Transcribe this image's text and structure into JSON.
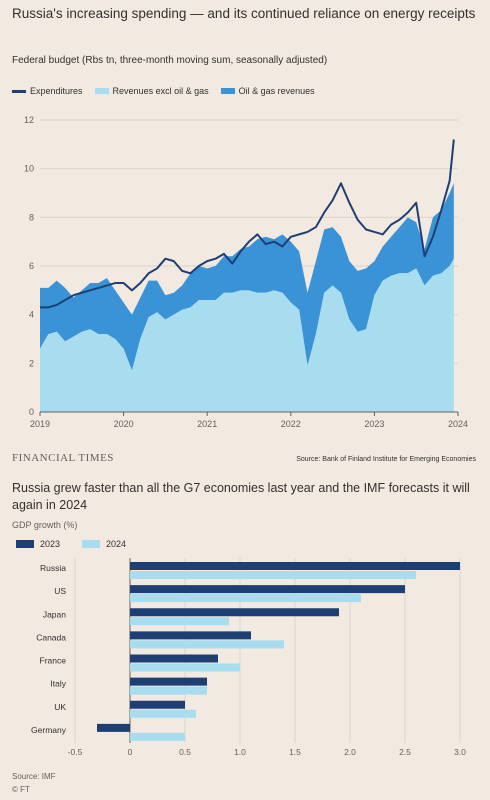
{
  "chart1": {
    "title": "Russia's increasing spending — and its continued reliance on energy receipts",
    "subtitle": "Federal budget (Rbs tn, three-month moving sum, seasonally adjusted)",
    "source": "Source: Bank of Finland Institute for Emerging Economies",
    "logo": "FINANCIAL TIMES"
  },
  "chart2": {
    "title": "Russia grew faster than all the G7 economies last year and the IMF forecasts it will again in 2024",
    "subtitle": "GDP growth (%)",
    "source": "Source: IMF",
    "copyright": "© FT"
  },
  "colors": {
    "background": "#f2e9e0",
    "expenditures": "#1e3f73",
    "revenues_excl": "#a8dcef",
    "oil_gas": "#3a93d6",
    "y2023": "#1e3f73",
    "y2024": "#a8dcef",
    "grid": "#dcd3cb",
    "axis_text": "#66605c"
  },
  "chart_data": [
    {
      "type": "area",
      "title": "Russia's increasing spending — and its continued reliance on energy receipts",
      "subtitle": "Federal budget (Rbs tn, three-month moving sum, seasonally adjusted)",
      "ylim": [
        0,
        12
      ],
      "yticks": [
        0,
        2,
        4,
        6,
        8,
        10,
        12
      ],
      "xlim": [
        2019,
        2024
      ],
      "xticks": [
        "2019",
        "2020",
        "2021",
        "2022",
        "2023",
        "2024"
      ],
      "grid": true,
      "legend_position": "top-left",
      "series": [
        {
          "name": "Expenditures",
          "style": "line",
          "x": [
            2019.0,
            2019.1,
            2019.2,
            2019.3,
            2019.4,
            2019.5,
            2019.6,
            2019.7,
            2019.8,
            2019.9,
            2020.0,
            2020.1,
            2020.2,
            2020.3,
            2020.4,
            2020.5,
            2020.6,
            2020.7,
            2020.8,
            2020.9,
            2021.0,
            2021.1,
            2021.2,
            2021.3,
            2021.4,
            2021.5,
            2021.6,
            2021.7,
            2021.8,
            2021.9,
            2022.0,
            2022.1,
            2022.2,
            2022.3,
            2022.4,
            2022.5,
            2022.6,
            2022.7,
            2022.8,
            2022.9,
            2023.0,
            2023.1,
            2023.2,
            2023.3,
            2023.4,
            2023.5,
            2023.6,
            2023.7,
            2023.8,
            2023.9,
            2023.95
          ],
          "values": [
            4.3,
            4.3,
            4.4,
            4.6,
            4.8,
            4.9,
            5.0,
            5.1,
            5.2,
            5.3,
            5.3,
            5.0,
            5.3,
            5.7,
            5.9,
            6.3,
            6.2,
            5.8,
            5.7,
            6.0,
            6.2,
            6.3,
            6.5,
            6.1,
            6.6,
            7.0,
            7.3,
            6.9,
            7.0,
            6.8,
            7.2,
            7.3,
            7.4,
            7.6,
            8.2,
            8.7,
            9.4,
            8.6,
            7.9,
            7.5,
            7.4,
            7.3,
            7.7,
            7.9,
            8.2,
            8.6,
            6.4,
            7.2,
            8.3,
            9.5,
            11.2
          ]
        },
        {
          "name": "Revenues excl oil & gas",
          "style": "area",
          "x": [
            2019.0,
            2019.1,
            2019.2,
            2019.3,
            2019.4,
            2019.5,
            2019.6,
            2019.7,
            2019.8,
            2019.9,
            2020.0,
            2020.1,
            2020.2,
            2020.3,
            2020.4,
            2020.5,
            2020.6,
            2020.7,
            2020.8,
            2020.9,
            2021.0,
            2021.1,
            2021.2,
            2021.3,
            2021.4,
            2021.5,
            2021.6,
            2021.7,
            2021.8,
            2021.9,
            2022.0,
            2022.1,
            2022.2,
            2022.3,
            2022.4,
            2022.5,
            2022.6,
            2022.7,
            2022.8,
            2022.9,
            2023.0,
            2023.1,
            2023.2,
            2023.3,
            2023.4,
            2023.5,
            2023.6,
            2023.7,
            2023.8,
            2023.9,
            2023.95
          ],
          "values": [
            2.6,
            3.2,
            3.3,
            2.9,
            3.1,
            3.3,
            3.4,
            3.2,
            3.2,
            3.0,
            2.6,
            1.7,
            3.0,
            3.9,
            4.1,
            3.8,
            4.0,
            4.2,
            4.3,
            4.6,
            4.6,
            4.6,
            4.9,
            4.9,
            5.0,
            5.0,
            4.9,
            4.9,
            5.0,
            4.9,
            4.5,
            4.2,
            1.9,
            3.2,
            4.9,
            5.2,
            4.9,
            3.8,
            3.3,
            3.4,
            4.8,
            5.4,
            5.6,
            5.7,
            5.7,
            5.9,
            5.2,
            5.6,
            5.7,
            6.0,
            6.3
          ]
        },
        {
          "name": "Oil & gas revenues",
          "style": "area",
          "x": [
            2019.0,
            2019.1,
            2019.2,
            2019.3,
            2019.4,
            2019.5,
            2019.6,
            2019.7,
            2019.8,
            2019.9,
            2020.0,
            2020.1,
            2020.2,
            2020.3,
            2020.4,
            2020.5,
            2020.6,
            2020.7,
            2020.8,
            2020.9,
            2021.0,
            2021.1,
            2021.2,
            2021.3,
            2021.4,
            2021.5,
            2021.6,
            2021.7,
            2021.8,
            2021.9,
            2022.0,
            2022.1,
            2022.2,
            2022.3,
            2022.4,
            2022.5,
            2022.6,
            2022.7,
            2022.8,
            2022.9,
            2023.0,
            2023.1,
            2023.2,
            2023.3,
            2023.4,
            2023.5,
            2023.6,
            2023.7,
            2023.8,
            2023.9,
            2023.95
          ],
          "values": [
            2.5,
            1.9,
            2.1,
            2.2,
            1.6,
            1.7,
            1.9,
            2.1,
            2.3,
            2.0,
            1.9,
            2.3,
            1.7,
            1.5,
            1.3,
            1.0,
            0.9,
            1.0,
            1.4,
            1.4,
            1.3,
            1.4,
            1.5,
            1.5,
            1.7,
            1.8,
            2.2,
            2.3,
            2.1,
            2.4,
            2.5,
            2.4,
            3.0,
            3.0,
            2.6,
            2.4,
            2.3,
            2.4,
            2.5,
            2.5,
            1.4,
            1.4,
            1.6,
            1.9,
            2.3,
            1.9,
            1.5,
            2.4,
            2.6,
            3.0,
            3.1
          ]
        }
      ]
    },
    {
      "type": "bar",
      "orientation": "horizontal",
      "title": "Russia grew faster than all the G7 economies last year and the IMF forecasts it will again in 2024",
      "subtitle": "GDP growth (%)",
      "categories": [
        "Russia",
        "US",
        "Japan",
        "Canada",
        "France",
        "Italy",
        "UK",
        "Germany"
      ],
      "xlim": [
        -0.5,
        3.0
      ],
      "xticks": [
        "-0.5",
        "0",
        "0.5",
        "1.0",
        "1.5",
        "2.0",
        "2.5",
        "3.0"
      ],
      "legend_position": "top-left",
      "series": [
        {
          "name": "2023",
          "values": [
            3.0,
            2.5,
            1.9,
            1.1,
            0.8,
            0.7,
            0.5,
            -0.3
          ]
        },
        {
          "name": "2024",
          "values": [
            2.6,
            2.1,
            0.9,
            1.4,
            1.0,
            0.7,
            0.6,
            0.5
          ]
        }
      ]
    }
  ]
}
